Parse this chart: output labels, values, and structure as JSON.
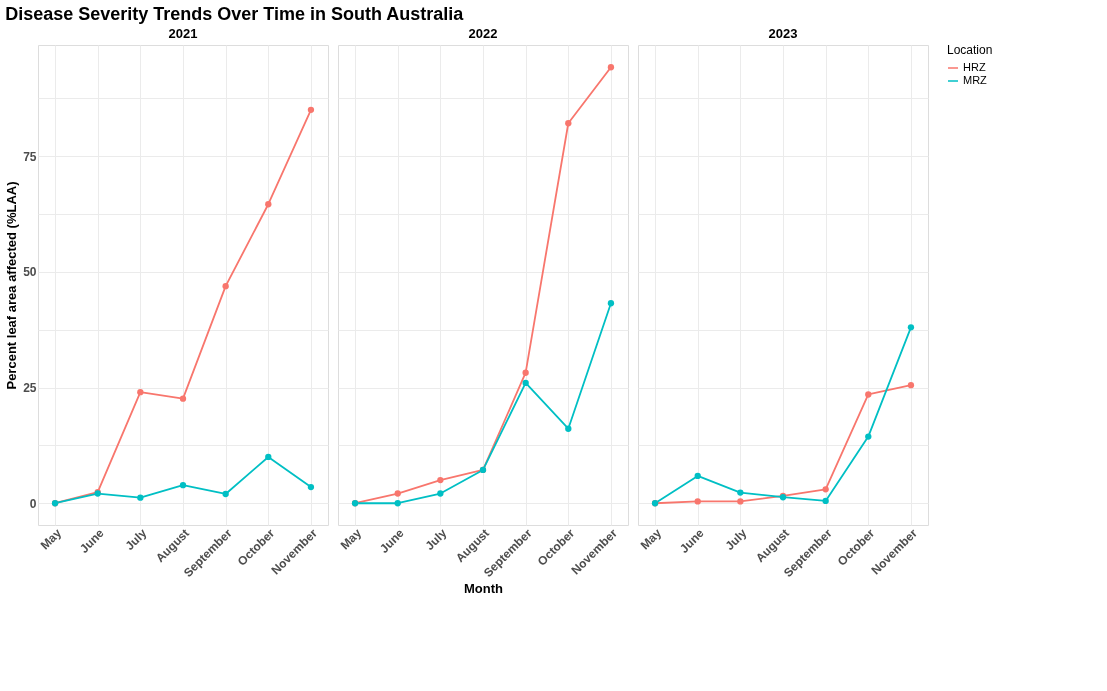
{
  "chart_data": [
    {
      "type": "line",
      "title": "Disease Severity Trends Over Time in South Australia",
      "subtitle": "2021",
      "ylabel": "Percent leaf area affected (%LAA)",
      "categories": [
        "May",
        "June",
        "July",
        "August",
        "September",
        "October",
        "November"
      ],
      "series": [
        {
          "name": "HRZ",
          "color": "#f8766d",
          "values": [
            0,
            2.4,
            24.0,
            22.6,
            46.9,
            64.6,
            85.0
          ]
        },
        {
          "name": "MRZ",
          "color": "#00bfc4",
          "values": [
            0,
            2.1,
            1.2,
            3.9,
            2.0,
            10.0,
            3.5
          ]
        }
      ],
      "ylim": [
        -4.7,
        99
      ],
      "yticks": [
        0,
        {
          "value": 12.5,
          "label": null
        },
        25,
        {
          "value": 37.5,
          "label": null
        },
        50,
        {
          "value": 62.5,
          "label": null
        },
        75,
        {
          "value": 87.5,
          "label": null
        }
      ],
      "grid": true,
      "marker": "circle",
      "line_style": "solid",
      "legend": "right",
      "legend_title": "Location"
    },
    {
      "type": "line",
      "subtitle": "2022",
      "xlabel": "Month",
      "categories": [
        "May",
        "June",
        "July",
        "August",
        "September",
        "October",
        "November"
      ],
      "series": [
        {
          "name": "HRZ",
          "color": "#f8766d",
          "values": [
            0,
            2.1,
            5.0,
            7.2,
            28.2,
            82.1,
            94.2
          ]
        },
        {
          "name": "MRZ",
          "color": "#00bfc4",
          "values": [
            0,
            0,
            2.1,
            7.2,
            26.0,
            16.1,
            43.2
          ]
        }
      ],
      "ylim": [
        -4.7,
        99
      ],
      "yticks": [
        0,
        {
          "value": 12.5,
          "label": null
        },
        25,
        {
          "value": 37.5,
          "label": null
        },
        50,
        {
          "value": 62.5,
          "label": null
        },
        75,
        {
          "value": 87.5,
          "label": null
        }
      ],
      "tick_labels": "x",
      "grid": true,
      "marker": "circle",
      "line_style": "solid",
      "legend": false
    },
    {
      "type": "line",
      "subtitle": "2023",
      "categories": [
        "May",
        "June",
        "July",
        "August",
        "September",
        "October",
        "November"
      ],
      "series": [
        {
          "name": "HRZ",
          "color": "#f8766d",
          "values": [
            0,
            0.4,
            0.4,
            1.6,
            3.0,
            23.5,
            25.5
          ]
        },
        {
          "name": "MRZ",
          "color": "#00bfc4",
          "values": [
            0,
            5.9,
            2.3,
            1.3,
            0.5,
            14.4,
            38.0
          ]
        }
      ],
      "ylim": [
        -4.7,
        99
      ],
      "yticks": [
        0,
        {
          "value": 12.5,
          "label": null
        },
        25,
        {
          "value": 37.5,
          "label": null
        },
        50,
        {
          "value": 62.5,
          "label": null
        },
        75,
        {
          "value": 87.5,
          "label": null
        }
      ],
      "tick_labels": "x",
      "grid": true,
      "marker": "circle",
      "line_style": "solid",
      "legend": false
    }
  ]
}
